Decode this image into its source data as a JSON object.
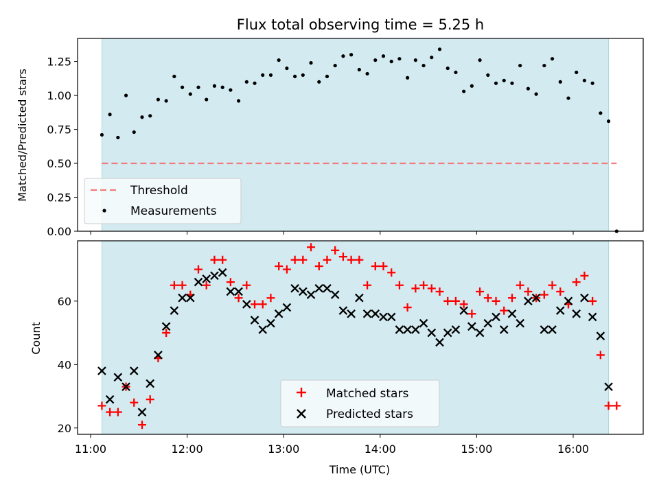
{
  "colors": {
    "shade": "#d3eaf0",
    "shade_edge": "#a8d8e3",
    "threshold": "#f07c7c",
    "measurement": "#000000",
    "matched": "#ff0000",
    "predicted": "#000000"
  },
  "chart_data": [
    {
      "type": "scatter",
      "title": "Flux total observing time = 5.25 h",
      "xlabel": "",
      "ylabel": "Matched/Predicted stars",
      "xlim": [
        "11:00",
        "16:40"
      ],
      "ylim": [
        0,
        1.42
      ],
      "yticks": [
        0.0,
        0.25,
        0.5,
        0.75,
        1.0,
        1.25
      ],
      "ytick_labels": [
        "0.00",
        "0.25",
        "0.50",
        "0.75",
        "1.00",
        "1.25"
      ],
      "shaded_interval": [
        "11:07",
        "16:22"
      ],
      "legend": {
        "position": "lower-left",
        "threshold_label": "Threshold",
        "measurements_label": "Measurements"
      },
      "threshold": {
        "value": 0.5,
        "x_range": [
          "11:07",
          "16:27"
        ]
      },
      "x_minutes_after_11": [
        7,
        12,
        17,
        22,
        27,
        32,
        37,
        42,
        47,
        52,
        57,
        62,
        67,
        72,
        77,
        82,
        87,
        92,
        97,
        102,
        107,
        112,
        117,
        122,
        127,
        132,
        137,
        142,
        147,
        152,
        157,
        162,
        167,
        172,
        177,
        182,
        187,
        192,
        197,
        202,
        207,
        212,
        217,
        222,
        227,
        232,
        237,
        242,
        247,
        252,
        257,
        262,
        267,
        272,
        277,
        282,
        287,
        292,
        297,
        302,
        307,
        312,
        317,
        322,
        327,
        332
      ],
      "ratio": [
        0.71,
        0.86,
        0.69,
        1.0,
        0.73,
        0.84,
        0.85,
        0.97,
        0.96,
        1.14,
        1.06,
        1.01,
        1.06,
        0.97,
        1.07,
        1.06,
        1.04,
        0.96,
        1.1,
        1.09,
        1.15,
        1.15,
        1.26,
        1.2,
        1.14,
        1.15,
        1.24,
        1.1,
        1.14,
        1.22,
        1.29,
        1.3,
        1.19,
        1.16,
        1.26,
        1.29,
        1.25,
        1.27,
        1.13,
        1.26,
        1.22,
        1.28,
        1.34,
        1.2,
        1.17,
        1.03,
        1.07,
        1.26,
        1.15,
        1.09,
        1.11,
        1.09,
        1.22,
        1.05,
        1.01,
        1.22,
        1.27,
        1.1,
        0.98,
        1.17,
        1.11,
        1.09,
        0.87,
        0.81,
        0.0,
        null
      ],
      "extra_point": {
        "x_minutes_after_11": 327,
        "value": 0.0
      }
    },
    {
      "type": "scatter",
      "title": "",
      "xlabel": "Time (UTC)",
      "ylabel": "Count",
      "xlim": [
        "11:00",
        "16:40"
      ],
      "ylim": [
        18,
        79
      ],
      "xticks": [
        "11:00",
        "12:00",
        "13:00",
        "14:00",
        "15:00",
        "16:00"
      ],
      "yticks": [
        20,
        40,
        60
      ],
      "ytick_labels": [
        "20",
        "40",
        "60"
      ],
      "shaded_interval": [
        "11:07",
        "16:22"
      ],
      "legend": {
        "position": "lower-center",
        "matched_label": "Matched stars",
        "predicted_label": "Predicted stars"
      },
      "x_minutes_after_11": [
        7,
        12,
        17,
        22,
        27,
        32,
        37,
        42,
        47,
        52,
        57,
        62,
        67,
        72,
        77,
        82,
        87,
        92,
        97,
        102,
        107,
        112,
        117,
        122,
        127,
        132,
        137,
        142,
        147,
        152,
        157,
        162,
        167,
        172,
        177,
        182,
        187,
        192,
        197,
        202,
        207,
        212,
        217,
        222,
        227,
        232,
        237,
        242,
        247,
        252,
        257,
        262,
        267,
        272,
        277,
        282,
        287,
        292,
        297,
        302,
        307,
        312,
        317,
        322,
        327,
        332
      ],
      "series": [
        {
          "name": "Matched stars",
          "marker": "+",
          "values": [
            27,
            25,
            25,
            33,
            28,
            21,
            29,
            42,
            50,
            65,
            65,
            62,
            70,
            65,
            73,
            73,
            66,
            61,
            65,
            59,
            59,
            61,
            71,
            70,
            73,
            73,
            77,
            71,
            73,
            76,
            74,
            73,
            73,
            65,
            71,
            71,
            69,
            65,
            58,
            64,
            65,
            64,
            63,
            60,
            60,
            59,
            56,
            63,
            61,
            60,
            57,
            61,
            65,
            63,
            61,
            62,
            65,
            63,
            59,
            66,
            68,
            60,
            43,
            27,
            27,
            null
          ]
        },
        {
          "name": "Predicted stars",
          "marker": "x",
          "values": [
            38,
            29,
            36,
            33,
            38,
            25,
            34,
            43,
            52,
            57,
            61,
            61,
            66,
            67,
            68,
            69,
            63,
            63,
            59,
            54,
            51,
            53,
            56,
            58,
            64,
            63,
            62,
            64,
            64,
            62,
            57,
            56,
            61,
            56,
            56,
            55,
            55,
            51,
            51,
            51,
            53,
            50,
            47,
            50,
            51,
            57,
            52,
            50,
            53,
            55,
            51,
            56,
            53,
            60,
            61,
            51,
            51,
            57,
            60,
            56,
            61,
            55,
            49,
            33,
            null,
            null
          ]
        }
      ]
    }
  ]
}
